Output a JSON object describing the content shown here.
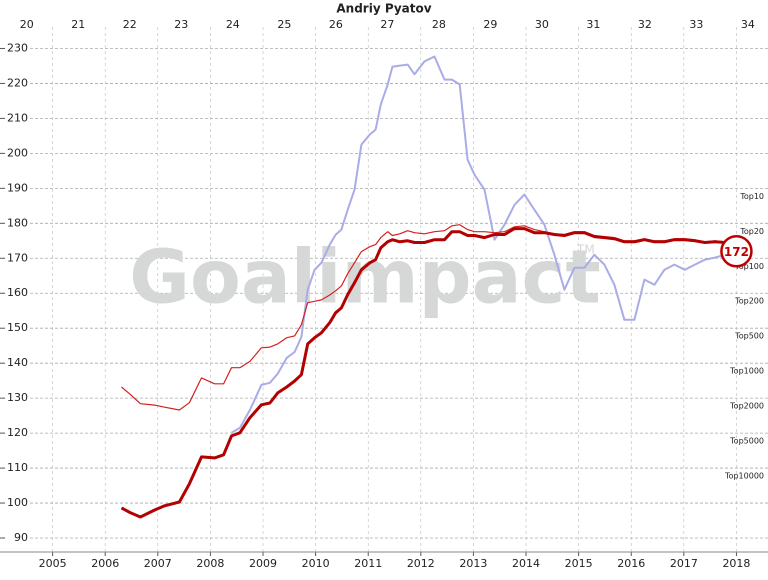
{
  "chart_data": {
    "type": "line",
    "title": "Andriy Pyatov",
    "watermark": "Goalimpact",
    "watermark_mark": "TM",
    "xlim": [
      2004,
      2018.6
    ],
    "xticks": [
      2005,
      2006,
      2007,
      2008,
      2009,
      2010,
      2011,
      2012,
      2013,
      2014,
      2015,
      2016,
      2017,
      2018
    ],
    "x2lim": [
      19.48,
      34.39
    ],
    "x2ticks": [
      20,
      21,
      22,
      23,
      24,
      25,
      26,
      27,
      28,
      29,
      30,
      31,
      32,
      33,
      34
    ],
    "ylim": [
      86,
      239
    ],
    "yticks": [
      90,
      100,
      110,
      120,
      130,
      140,
      150,
      160,
      170,
      180,
      190,
      200,
      210,
      220,
      230
    ],
    "grid": true,
    "annotations": [
      "Top10",
      "Top20",
      "Top100",
      "Top200",
      "Top500",
      "Top1000",
      "Top2000",
      "Top5000",
      "Top10000"
    ],
    "current_value": 172,
    "x": [
      2006.31,
      2006.48,
      2006.67,
      2006.94,
      2007.13,
      2007.41,
      2007.6,
      2007.83,
      2008.08,
      2008.25,
      2008.4,
      2008.56,
      2008.75,
      2008.97,
      2009.13,
      2009.28,
      2009.45,
      2009.6,
      2009.73,
      2009.85,
      2009.98,
      2010.11,
      2010.27,
      2010.38,
      2010.49,
      2010.61,
      2010.74,
      2010.87,
      2011.03,
      2011.14,
      2011.24,
      2011.37,
      2011.46,
      2011.6,
      2011.75,
      2011.88,
      2012.07,
      2012.26,
      2012.45,
      2012.59,
      2012.74,
      2012.89,
      2013.02,
      2013.21,
      2013.4,
      2013.59,
      2013.78,
      2013.97,
      2014.16,
      2014.35,
      2014.54,
      2014.73,
      2014.92,
      2015.11,
      2015.3,
      2015.49,
      2015.68,
      2015.87,
      2016.06,
      2016.25,
      2016.44,
      2016.63,
      2016.82,
      2017.02,
      2017.21,
      2017.4,
      2017.59,
      2017.78,
      2018.0
    ],
    "series": [
      {
        "color": "#a9ace6",
        "width": 2,
        "values": [
          null,
          null,
          null,
          null,
          null,
          null,
          null,
          null,
          null,
          null,
          120.1,
          121.5,
          126.6,
          133.8,
          134.4,
          137.0,
          141.5,
          143.2,
          147.5,
          161.0,
          166.7,
          168.7,
          173.9,
          176.7,
          178.2,
          183.9,
          189.6,
          202.5,
          205.4,
          206.8,
          214.0,
          219.7,
          224.8,
          225.1,
          225.4,
          222.6,
          226.3,
          227.7,
          221.1,
          221.1,
          219.7,
          198.2,
          193.9,
          189.6,
          175.3,
          179.6,
          185.3,
          188.2,
          183.9,
          179.6,
          171.0,
          161.0,
          167.3,
          167.3,
          171.0,
          168.2,
          162.4,
          152.4,
          152.4,
          163.9,
          162.4,
          166.7,
          168.2,
          166.7,
          168.2,
          169.6,
          170.2,
          171.0,
          171.9
        ]
      },
      {
        "color": "#d42020",
        "width": 1.2,
        "values": [
          133.2,
          131.0,
          128.4,
          128.0,
          127.4,
          126.6,
          128.7,
          135.8,
          134.1,
          134.1,
          138.7,
          138.7,
          140.5,
          144.4,
          144.6,
          145.5,
          147.3,
          147.8,
          151.0,
          157.3,
          157.7,
          158.1,
          159.5,
          160.7,
          162.1,
          165.6,
          168.7,
          171.9,
          173.3,
          173.9,
          175.9,
          177.6,
          176.5,
          177.0,
          177.9,
          177.3,
          177.0,
          177.6,
          177.9,
          179.3,
          179.6,
          178.2,
          177.6,
          177.6,
          177.3,
          177.6,
          179.0,
          179.3,
          178.2,
          177.6,
          177.0,
          176.8,
          177.6,
          177.6,
          176.5,
          176.2,
          175.9,
          175.0,
          175.0,
          175.6,
          175.0,
          175.0,
          175.6,
          175.6,
          175.3,
          174.7,
          175.0,
          174.7,
          174.7
        ]
      },
      {
        "color": "#b30000",
        "width": 3,
        "values": [
          98.6,
          97.2,
          96.0,
          98.0,
          99.2,
          100.3,
          105.5,
          113.2,
          112.9,
          113.8,
          119.2,
          120.1,
          124.4,
          128.1,
          128.6,
          131.5,
          133.2,
          134.9,
          136.7,
          145.5,
          147.3,
          148.7,
          151.6,
          154.4,
          155.8,
          159.6,
          163.0,
          166.7,
          168.7,
          169.6,
          173.0,
          174.7,
          175.3,
          174.7,
          175.0,
          174.5,
          174.5,
          175.3,
          175.3,
          177.6,
          177.6,
          176.5,
          176.5,
          175.9,
          176.8,
          176.8,
          178.5,
          178.5,
          177.3,
          177.3,
          176.8,
          176.5,
          177.3,
          177.3,
          176.2,
          175.9,
          175.6,
          174.7,
          174.7,
          175.3,
          174.7,
          174.7,
          175.3,
          175.3,
          175.0,
          174.5,
          174.7,
          174.5,
          174.5
        ]
      }
    ]
  }
}
